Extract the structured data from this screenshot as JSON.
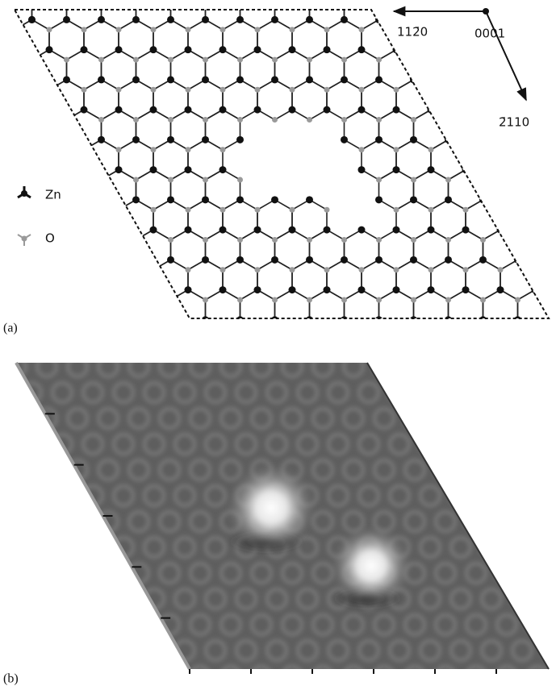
{
  "panel_a": {
    "label": "(a)",
    "legend": [
      {
        "label": "Zn"
      },
      {
        "label": "O"
      }
    ],
    "directions": [
      {
        "label": "112̄0"
      },
      {
        "label": "0001"
      },
      {
        "label": "2̄110"
      }
    ]
  },
  "panel_b": {
    "label": "(b)"
  }
}
